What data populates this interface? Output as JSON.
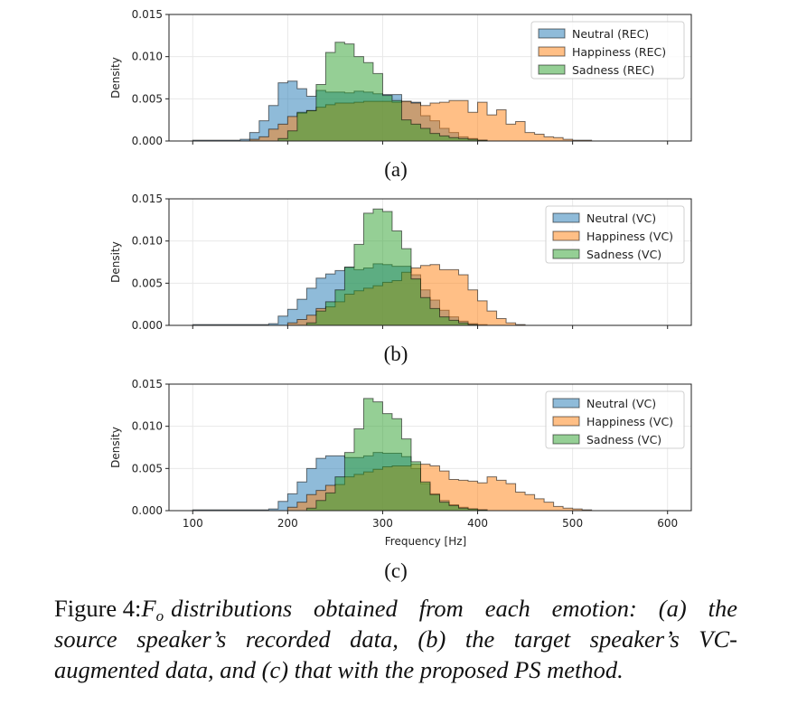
{
  "chart_data": [
    {
      "type": "histogram",
      "panel_label": "(a)",
      "ylabel": "Density",
      "xlabel": "",
      "xlim": [
        75,
        625
      ],
      "ylim": [
        0,
        0.015
      ],
      "xticks": [
        100,
        200,
        300,
        400,
        500,
        600
      ],
      "show_xtick_labels": false,
      "yticks": [
        "0.000",
        "0.005",
        "0.010",
        "0.015"
      ],
      "grid": true,
      "legend_position": "top-right",
      "bin_width": 10,
      "series": [
        {
          "name": "Neutral (REC)",
          "color": "#1f77b4",
          "bin_start": 100,
          "density": [
            0.0001,
            0.0001,
            0.0001,
            0.0001,
            0.0001,
            0.0002,
            0.001,
            0.0024,
            0.0042,
            0.0069,
            0.0071,
            0.0062,
            0.0053,
            0.006,
            0.0058,
            0.0058,
            0.0057,
            0.0059,
            0.0058,
            0.0056,
            0.0055,
            0.0055,
            0.0047,
            0.0046,
            0.003,
            0.0024,
            0.0015,
            0.001,
            0.0005,
            0.0003,
            0.0001
          ]
        },
        {
          "name": "Happiness (REC)",
          "color": "#ff7f0e",
          "bin_start": 160,
          "density": [
            0.0002,
            0.0005,
            0.0014,
            0.002,
            0.0029,
            0.0033,
            0.0036,
            0.004,
            0.0043,
            0.0045,
            0.0045,
            0.0046,
            0.0047,
            0.0047,
            0.0047,
            0.0046,
            0.0047,
            0.0045,
            0.0042,
            0.0045,
            0.0046,
            0.0048,
            0.0048,
            0.0034,
            0.0046,
            0.0031,
            0.0037,
            0.002,
            0.0023,
            0.001,
            0.0008,
            0.0005,
            0.0004,
            0.0002,
            0.0001,
            0.0001
          ]
        },
        {
          "name": "Sadness (REC)",
          "color": "#2ca02c",
          "bin_start": 190,
          "density": [
            0.0003,
            0.0012,
            0.0034,
            0.0036,
            0.0067,
            0.0105,
            0.0117,
            0.0115,
            0.01,
            0.0093,
            0.008,
            0.0054,
            0.0048,
            0.0025,
            0.002,
            0.0015,
            0.0009,
            0.0006,
            0.0004,
            0.0003,
            0.0002,
            0.0001
          ]
        }
      ]
    },
    {
      "type": "histogram",
      "panel_label": "(b)",
      "ylabel": "Density",
      "xlabel": "",
      "xlim": [
        75,
        625
      ],
      "ylim": [
        0,
        0.015
      ],
      "xticks": [
        100,
        200,
        300,
        400,
        500,
        600
      ],
      "show_xtick_labels": false,
      "yticks": [
        "0.000",
        "0.005",
        "0.010",
        "0.015"
      ],
      "grid": true,
      "legend_position": "top-right",
      "bin_width": 10,
      "series": [
        {
          "name": "Neutral (VC)",
          "color": "#1f77b4",
          "bin_start": 100,
          "density": [
            0.0001,
            0.0001,
            0.0001,
            0.0001,
            0.0001,
            0.0001,
            0.0001,
            0.0001,
            0.0002,
            0.0011,
            0.0019,
            0.0031,
            0.0044,
            0.0056,
            0.0061,
            0.0065,
            0.0069,
            0.0066,
            0.0068,
            0.0073,
            0.0072,
            0.007,
            0.007,
            0.006,
            0.0042,
            0.003,
            0.0018,
            0.001,
            0.0005,
            0.0002,
            0.0001
          ]
        },
        {
          "name": "Happiness (VC)",
          "color": "#ff7f0e",
          "bin_start": 200,
          "density": [
            0.0003,
            0.0007,
            0.0012,
            0.002,
            0.0022,
            0.0028,
            0.0037,
            0.0041,
            0.0044,
            0.0047,
            0.0051,
            0.0053,
            0.0063,
            0.0068,
            0.0071,
            0.0072,
            0.0066,
            0.0066,
            0.006,
            0.0042,
            0.0029,
            0.0017,
            0.0008,
            0.0003,
            0.0001
          ]
        },
        {
          "name": "Sadness (VC)",
          "color": "#2ca02c",
          "bin_start": 220,
          "density": [
            0.0003,
            0.0017,
            0.0028,
            0.0042,
            0.0069,
            0.0096,
            0.0133,
            0.0138,
            0.0135,
            0.0112,
            0.0091,
            0.0055,
            0.0033,
            0.002,
            0.001,
            0.0006,
            0.0003,
            0.0001
          ]
        }
      ]
    },
    {
      "type": "histogram",
      "panel_label": "(c)",
      "ylabel": "Density",
      "xlabel": "Frequency [Hz]",
      "xlim": [
        75,
        625
      ],
      "ylim": [
        0,
        0.015
      ],
      "xticks": [
        100,
        200,
        300,
        400,
        500,
        600
      ],
      "show_xtick_labels": true,
      "yticks": [
        "0.000",
        "0.005",
        "0.010",
        "0.015"
      ],
      "grid": true,
      "legend_position": "top-right",
      "bin_width": 10,
      "series": [
        {
          "name": "Neutral (VC)",
          "color": "#1f77b4",
          "bin_start": 100,
          "density": [
            0.0001,
            0.0001,
            0.0001,
            0.0001,
            0.0001,
            0.0001,
            0.0001,
            0.0001,
            0.0002,
            0.0011,
            0.002,
            0.0034,
            0.005,
            0.0062,
            0.0065,
            0.0065,
            0.0063,
            0.0063,
            0.0065,
            0.0069,
            0.0068,
            0.0068,
            0.0064,
            0.005,
            0.0032,
            0.002,
            0.0012,
            0.0007,
            0.0004,
            0.0002,
            0.0001
          ]
        },
        {
          "name": "Happiness (VC)",
          "color": "#ff7f0e",
          "bin_start": 200,
          "density": [
            0.0004,
            0.001,
            0.0019,
            0.0024,
            0.003,
            0.0031,
            0.004,
            0.0043,
            0.0046,
            0.0049,
            0.0052,
            0.0053,
            0.0053,
            0.0055,
            0.0055,
            0.0053,
            0.0047,
            0.0037,
            0.0036,
            0.0035,
            0.0033,
            0.004,
            0.0036,
            0.0032,
            0.0022,
            0.0019,
            0.0014,
            0.001,
            0.0005,
            0.0003,
            0.0002,
            0.0001
          ]
        },
        {
          "name": "Sadness (VC)",
          "color": "#2ca02c",
          "bin_start": 220,
          "density": [
            0.0003,
            0.0012,
            0.0021,
            0.004,
            0.0069,
            0.0097,
            0.0133,
            0.0129,
            0.0115,
            0.0109,
            0.0085,
            0.0058,
            0.0034,
            0.0019,
            0.001,
            0.0006,
            0.0003,
            0.0002,
            0.0001
          ]
        }
      ]
    }
  ],
  "caption": {
    "prefix": "Figure 4:",
    "symbol": "F",
    "symbol_sub": "o",
    "line1": "distributions obtained from each emotion: (a) the",
    "line2": "source speaker’s recorded data, (b) the target speaker’s VC-",
    "line3": "augmented data, and (c) that with the proposed PS method."
  }
}
